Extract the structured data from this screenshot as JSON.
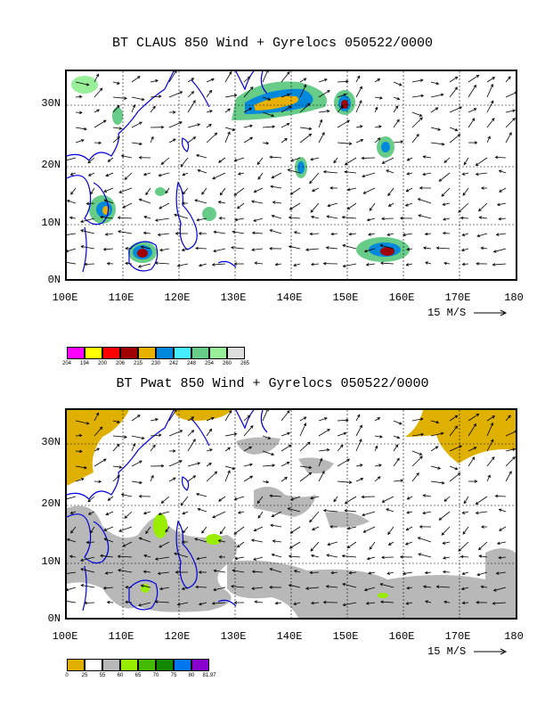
{
  "panels": [
    {
      "title": "BT CLAUS 850 Wind + Gyrelocs 050522/0000",
      "lat_labels": [
        "30N",
        "20N",
        "10N",
        "0N"
      ],
      "lon_labels": [
        "100E",
        "110E",
        "120E",
        "130E",
        "140E",
        "150E",
        "160E",
        "170E",
        "180"
      ],
      "ref_vector": "15 M/S",
      "legend": {
        "colors": [
          "#ff00ff",
          "#ffff00",
          "#ff0000",
          "#a00000",
          "#e8b000",
          "#0088dd",
          "#44eeff",
          "#66cc88",
          "#99ee99",
          "#dddddd"
        ],
        "labels": [
          "204",
          "194",
          "200",
          "206",
          "215",
          "230",
          "242",
          "248",
          "254",
          "260",
          "265"
        ]
      }
    },
    {
      "title": "BT Pwat 850 Wind + Gyrelocs 050522/0000",
      "lat_labels": [
        "30N",
        "20N",
        "10N",
        "0N"
      ],
      "lon_labels": [
        "100E",
        "110E",
        "120E",
        "130E",
        "140E",
        "150E",
        "160E",
        "170E",
        "180"
      ],
      "ref_vector": "15 M/S",
      "legend": {
        "colors": [
          "#e0b000",
          "#ffffff",
          "#b8b8b8",
          "#99ee00",
          "#44bb00",
          "#118800",
          "#0077ee",
          "#8800cc"
        ],
        "labels": [
          "0",
          "25",
          "55",
          "60",
          "65",
          "70",
          "75",
          "80",
          "81.97"
        ]
      }
    }
  ]
}
